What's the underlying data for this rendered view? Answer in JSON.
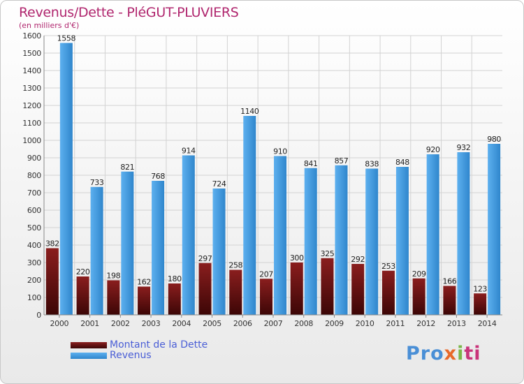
{
  "title": "Revenus/Dette - PléGUT-PLUVIERS",
  "unit_label": "(en milliers d'€)",
  "logo": {
    "text": "Proxiti",
    "parts": [
      "Pro",
      "x",
      "i",
      "ti"
    ]
  },
  "colors": {
    "dette": "#7a1414",
    "revenus": "#3f98dd",
    "title": "#b0266e",
    "legend_text": "#4a5ed6"
  },
  "chart_data": {
    "type": "bar",
    "title": "Revenus/Dette - PléGUT-PLUVIERS",
    "ylabel": "(en milliers d'€)",
    "xlabel": "",
    "ylim": [
      0,
      1600
    ],
    "ytick_step": 100,
    "grid": true,
    "legend_position": "bottom-left",
    "categories": [
      "2000",
      "2001",
      "2002",
      "2003",
      "2004",
      "2005",
      "2006",
      "2007",
      "2008",
      "2009",
      "2010",
      "2011",
      "2012",
      "2013",
      "2014"
    ],
    "series": [
      {
        "name": "Montant de la Dette",
        "color": "#7a1414",
        "values": [
          382,
          220,
          198,
          162,
          180,
          297,
          258,
          207,
          300,
          325,
          292,
          253,
          209,
          166,
          123
        ]
      },
      {
        "name": "Revenus",
        "color": "#3f98dd",
        "values": [
          1558,
          733,
          821,
          768,
          914,
          724,
          1140,
          910,
          841,
          857,
          838,
          848,
          920,
          932,
          980
        ]
      }
    ]
  }
}
